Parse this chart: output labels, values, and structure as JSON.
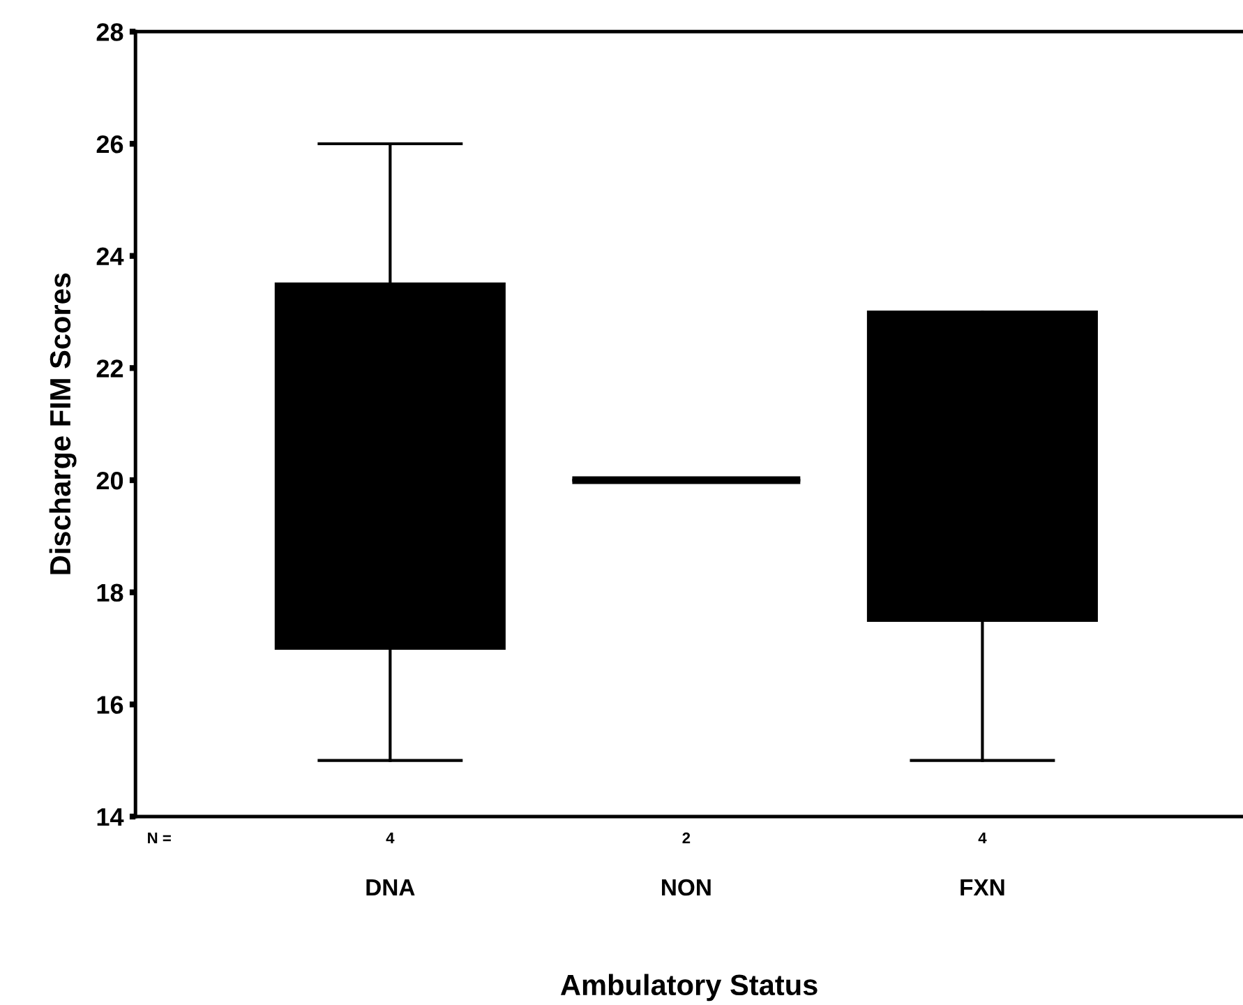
{
  "chart_data": {
    "type": "box",
    "xlabel": "Ambulatory Status",
    "ylabel": "Discharge FIM Scores",
    "categories": [
      "DNA",
      "NON",
      "FXN"
    ],
    "boxes": [
      {
        "low": 15,
        "q1": 17,
        "median": 20,
        "q3": 23.5,
        "high": 26
      },
      {
        "low": 20,
        "q1": 20,
        "median": 20,
        "q3": 20,
        "high": 20
      },
      {
        "low": 15,
        "q1": 17.5,
        "median": 20,
        "q3": 23,
        "high": 23
      }
    ],
    "color": "#000000",
    "annotations": [
      "N =",
      "4",
      "2",
      "4"
    ],
    "ylim": [
      14,
      28
    ],
    "yticks": [
      14,
      16,
      18,
      20,
      22,
      24,
      26,
      28
    ],
    "grid": false,
    "legend": false
  }
}
